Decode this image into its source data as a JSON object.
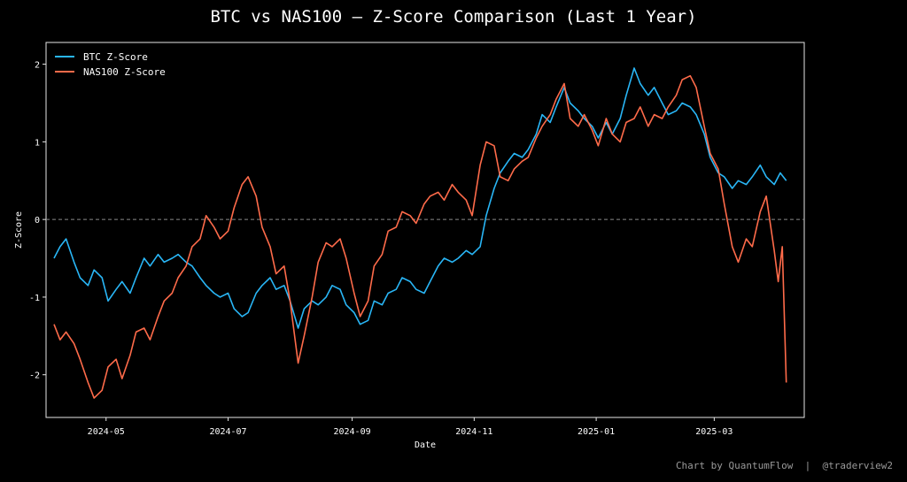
{
  "chart_data": {
    "type": "line",
    "title": "BTC vs NAS100 – Z-Score Comparison (Last 1 Year)",
    "xlabel": "Date",
    "ylabel": "Z-Score",
    "x_range": [
      "2024-04-01",
      "2025-04-15"
    ],
    "ylim": [
      -2.55,
      2.28
    ],
    "x_tick_labels": [
      {
        "date": "2024-05-01",
        "label": "2024-05"
      },
      {
        "date": "2024-07-01",
        "label": "2024-07"
      },
      {
        "date": "2024-09-01",
        "label": "2024-09"
      },
      {
        "date": "2024-11-01",
        "label": "2024-11"
      },
      {
        "date": "2025-01-01",
        "label": "2025-01"
      },
      {
        "date": "2025-03-01",
        "label": "2025-03"
      }
    ],
    "y_ticks": [
      -2,
      -1,
      0,
      1,
      2
    ],
    "zero_line": {
      "y": 0,
      "style": "dashed"
    },
    "grid": false,
    "legend": "top-left",
    "series": [
      {
        "name": "BTC Z-Score",
        "color": "#29b6f6",
        "points": [
          [
            "2024-04-05",
            -0.5
          ],
          [
            "2024-04-08",
            -0.35
          ],
          [
            "2024-04-11",
            -0.25
          ],
          [
            "2024-04-15",
            -0.55
          ],
          [
            "2024-04-18",
            -0.75
          ],
          [
            "2024-04-22",
            -0.85
          ],
          [
            "2024-04-25",
            -0.65
          ],
          [
            "2024-04-29",
            -0.75
          ],
          [
            "2024-05-02",
            -1.05
          ],
          [
            "2024-05-06",
            -0.9
          ],
          [
            "2024-05-09",
            -0.8
          ],
          [
            "2024-05-13",
            -0.95
          ],
          [
            "2024-05-16",
            -0.75
          ],
          [
            "2024-05-20",
            -0.5
          ],
          [
            "2024-05-23",
            -0.6
          ],
          [
            "2024-05-27",
            -0.45
          ],
          [
            "2024-05-30",
            -0.55
          ],
          [
            "2024-06-03",
            -0.5
          ],
          [
            "2024-06-06",
            -0.45
          ],
          [
            "2024-06-10",
            -0.55
          ],
          [
            "2024-06-13",
            -0.6
          ],
          [
            "2024-06-17",
            -0.75
          ],
          [
            "2024-06-20",
            -0.85
          ],
          [
            "2024-06-24",
            -0.95
          ],
          [
            "2024-06-27",
            -1.0
          ],
          [
            "2024-07-01",
            -0.95
          ],
          [
            "2024-07-04",
            -1.15
          ],
          [
            "2024-07-08",
            -1.25
          ],
          [
            "2024-07-11",
            -1.2
          ],
          [
            "2024-07-15",
            -0.95
          ],
          [
            "2024-07-18",
            -0.85
          ],
          [
            "2024-07-22",
            -0.75
          ],
          [
            "2024-07-25",
            -0.9
          ],
          [
            "2024-07-29",
            -0.85
          ],
          [
            "2024-08-01",
            -1.05
          ],
          [
            "2024-08-05",
            -1.4
          ],
          [
            "2024-08-08",
            -1.15
          ],
          [
            "2024-08-12",
            -1.05
          ],
          [
            "2024-08-15",
            -1.1
          ],
          [
            "2024-08-19",
            -1.0
          ],
          [
            "2024-08-22",
            -0.85
          ],
          [
            "2024-08-26",
            -0.9
          ],
          [
            "2024-08-29",
            -1.1
          ],
          [
            "2024-09-02",
            -1.2
          ],
          [
            "2024-09-05",
            -1.35
          ],
          [
            "2024-09-09",
            -1.3
          ],
          [
            "2024-09-12",
            -1.05
          ],
          [
            "2024-09-16",
            -1.1
          ],
          [
            "2024-09-19",
            -0.95
          ],
          [
            "2024-09-23",
            -0.9
          ],
          [
            "2024-09-26",
            -0.75
          ],
          [
            "2024-09-30",
            -0.8
          ],
          [
            "2024-10-03",
            -0.9
          ],
          [
            "2024-10-07",
            -0.95
          ],
          [
            "2024-10-10",
            -0.8
          ],
          [
            "2024-10-14",
            -0.6
          ],
          [
            "2024-10-17",
            -0.5
          ],
          [
            "2024-10-21",
            -0.55
          ],
          [
            "2024-10-24",
            -0.5
          ],
          [
            "2024-10-28",
            -0.4
          ],
          [
            "2024-10-31",
            -0.45
          ],
          [
            "2024-11-04",
            -0.35
          ],
          [
            "2024-11-07",
            0.05
          ],
          [
            "2024-11-11",
            0.4
          ],
          [
            "2024-11-14",
            0.6
          ],
          [
            "2024-11-18",
            0.75
          ],
          [
            "2024-11-21",
            0.85
          ],
          [
            "2024-11-25",
            0.8
          ],
          [
            "2024-11-28",
            0.9
          ],
          [
            "2024-12-02",
            1.1
          ],
          [
            "2024-12-05",
            1.35
          ],
          [
            "2024-12-09",
            1.25
          ],
          [
            "2024-12-12",
            1.45
          ],
          [
            "2024-12-16",
            1.7
          ],
          [
            "2024-12-19",
            1.5
          ],
          [
            "2024-12-23",
            1.4
          ],
          [
            "2024-12-26",
            1.3
          ],
          [
            "2024-12-30",
            1.2
          ],
          [
            "2025-01-02",
            1.05
          ],
          [
            "2025-01-06",
            1.25
          ],
          [
            "2025-01-09",
            1.1
          ],
          [
            "2025-01-13",
            1.3
          ],
          [
            "2025-01-16",
            1.6
          ],
          [
            "2025-01-20",
            1.95
          ],
          [
            "2025-01-23",
            1.75
          ],
          [
            "2025-01-27",
            1.6
          ],
          [
            "2025-01-30",
            1.7
          ],
          [
            "2025-02-03",
            1.5
          ],
          [
            "2025-02-06",
            1.35
          ],
          [
            "2025-02-10",
            1.4
          ],
          [
            "2025-02-13",
            1.5
          ],
          [
            "2025-02-17",
            1.45
          ],
          [
            "2025-02-20",
            1.35
          ],
          [
            "2025-02-24",
            1.1
          ],
          [
            "2025-02-27",
            0.8
          ],
          [
            "2025-03-03",
            0.6
          ],
          [
            "2025-03-06",
            0.55
          ],
          [
            "2025-03-10",
            0.4
          ],
          [
            "2025-03-13",
            0.5
          ],
          [
            "2025-03-17",
            0.45
          ],
          [
            "2025-03-20",
            0.55
          ],
          [
            "2025-03-24",
            0.7
          ],
          [
            "2025-03-27",
            0.55
          ],
          [
            "2025-03-31",
            0.45
          ],
          [
            "2025-04-03",
            0.6
          ],
          [
            "2025-04-06",
            0.5
          ]
        ]
      },
      {
        "name": "NAS100 Z-Score",
        "color": "#ff6b4a",
        "points": [
          [
            "2024-04-05",
            -1.35
          ],
          [
            "2024-04-08",
            -1.55
          ],
          [
            "2024-04-11",
            -1.45
          ],
          [
            "2024-04-15",
            -1.6
          ],
          [
            "2024-04-18",
            -1.8
          ],
          [
            "2024-04-22",
            -2.1
          ],
          [
            "2024-04-25",
            -2.3
          ],
          [
            "2024-04-29",
            -2.2
          ],
          [
            "2024-05-02",
            -1.9
          ],
          [
            "2024-05-06",
            -1.8
          ],
          [
            "2024-05-09",
            -2.05
          ],
          [
            "2024-05-13",
            -1.75
          ],
          [
            "2024-05-16",
            -1.45
          ],
          [
            "2024-05-20",
            -1.4
          ],
          [
            "2024-05-23",
            -1.55
          ],
          [
            "2024-05-27",
            -1.25
          ],
          [
            "2024-05-30",
            -1.05
          ],
          [
            "2024-06-03",
            -0.95
          ],
          [
            "2024-06-06",
            -0.75
          ],
          [
            "2024-06-10",
            -0.6
          ],
          [
            "2024-06-13",
            -0.35
          ],
          [
            "2024-06-17",
            -0.25
          ],
          [
            "2024-06-20",
            0.05
          ],
          [
            "2024-06-24",
            -0.1
          ],
          [
            "2024-06-27",
            -0.25
          ],
          [
            "2024-07-01",
            -0.15
          ],
          [
            "2024-07-04",
            0.15
          ],
          [
            "2024-07-08",
            0.45
          ],
          [
            "2024-07-11",
            0.55
          ],
          [
            "2024-07-15",
            0.3
          ],
          [
            "2024-07-18",
            -0.1
          ],
          [
            "2024-07-22",
            -0.35
          ],
          [
            "2024-07-25",
            -0.7
          ],
          [
            "2024-07-29",
            -0.6
          ],
          [
            "2024-08-01",
            -1.05
          ],
          [
            "2024-08-05",
            -1.85
          ],
          [
            "2024-08-08",
            -1.5
          ],
          [
            "2024-08-12",
            -1.0
          ],
          [
            "2024-08-15",
            -0.55
          ],
          [
            "2024-08-19",
            -0.3
          ],
          [
            "2024-08-22",
            -0.35
          ],
          [
            "2024-08-26",
            -0.25
          ],
          [
            "2024-08-29",
            -0.5
          ],
          [
            "2024-09-02",
            -0.95
          ],
          [
            "2024-09-05",
            -1.25
          ],
          [
            "2024-09-09",
            -1.05
          ],
          [
            "2024-09-12",
            -0.6
          ],
          [
            "2024-09-16",
            -0.45
          ],
          [
            "2024-09-19",
            -0.15
          ],
          [
            "2024-09-23",
            -0.1
          ],
          [
            "2024-09-26",
            0.1
          ],
          [
            "2024-09-30",
            0.05
          ],
          [
            "2024-10-03",
            -0.05
          ],
          [
            "2024-10-07",
            0.2
          ],
          [
            "2024-10-10",
            0.3
          ],
          [
            "2024-10-14",
            0.35
          ],
          [
            "2024-10-17",
            0.25
          ],
          [
            "2024-10-21",
            0.45
          ],
          [
            "2024-10-24",
            0.35
          ],
          [
            "2024-10-28",
            0.25
          ],
          [
            "2024-10-31",
            0.05
          ],
          [
            "2024-11-04",
            0.7
          ],
          [
            "2024-11-07",
            1.0
          ],
          [
            "2024-11-11",
            0.95
          ],
          [
            "2024-11-14",
            0.55
          ],
          [
            "2024-11-18",
            0.5
          ],
          [
            "2024-11-21",
            0.65
          ],
          [
            "2024-11-25",
            0.75
          ],
          [
            "2024-11-28",
            0.8
          ],
          [
            "2024-12-02",
            1.05
          ],
          [
            "2024-12-05",
            1.2
          ],
          [
            "2024-12-09",
            1.35
          ],
          [
            "2024-12-12",
            1.55
          ],
          [
            "2024-12-16",
            1.75
          ],
          [
            "2024-12-19",
            1.3
          ],
          [
            "2024-12-23",
            1.2
          ],
          [
            "2024-12-26",
            1.35
          ],
          [
            "2024-12-30",
            1.15
          ],
          [
            "2025-01-02",
            0.95
          ],
          [
            "2025-01-06",
            1.3
          ],
          [
            "2025-01-09",
            1.1
          ],
          [
            "2025-01-13",
            1.0
          ],
          [
            "2025-01-16",
            1.25
          ],
          [
            "2025-01-20",
            1.3
          ],
          [
            "2025-01-23",
            1.45
          ],
          [
            "2025-01-27",
            1.2
          ],
          [
            "2025-01-30",
            1.35
          ],
          [
            "2025-02-03",
            1.3
          ],
          [
            "2025-02-06",
            1.45
          ],
          [
            "2025-02-10",
            1.6
          ],
          [
            "2025-02-13",
            1.8
          ],
          [
            "2025-02-17",
            1.85
          ],
          [
            "2025-02-20",
            1.7
          ],
          [
            "2025-02-24",
            1.2
          ],
          [
            "2025-02-27",
            0.85
          ],
          [
            "2025-03-03",
            0.65
          ],
          [
            "2025-03-06",
            0.2
          ],
          [
            "2025-03-10",
            -0.35
          ],
          [
            "2025-03-13",
            -0.55
          ],
          [
            "2025-03-17",
            -0.25
          ],
          [
            "2025-03-20",
            -0.35
          ],
          [
            "2025-03-24",
            0.1
          ],
          [
            "2025-03-27",
            0.3
          ],
          [
            "2025-03-31",
            -0.4
          ],
          [
            "2025-04-02",
            -0.8
          ],
          [
            "2025-04-04",
            -0.35
          ],
          [
            "2025-04-06",
            -2.1
          ]
        ]
      }
    ]
  },
  "footer": {
    "credit": "Chart by QuantumFlow",
    "separator": "|",
    "handle": "@traderview2"
  }
}
